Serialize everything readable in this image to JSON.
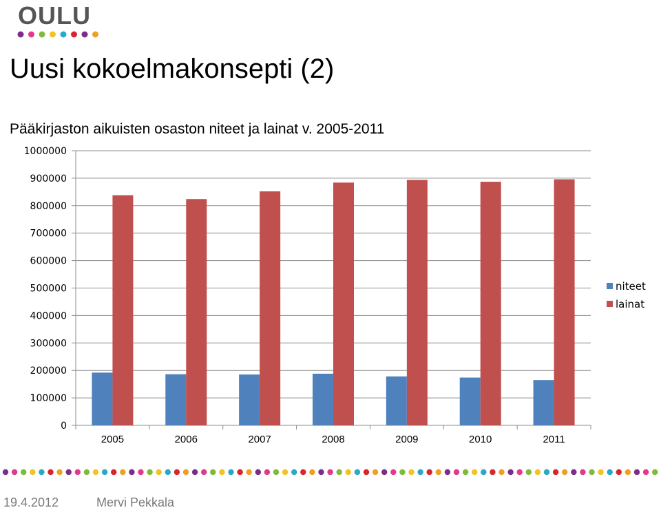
{
  "logo": {
    "text": "OULU",
    "dot_colors": [
      "#7b2d8e",
      "#e2398c",
      "#7fbb3b",
      "#f3c324",
      "#2aa8c8",
      "#d9262c",
      "#7b2d8e",
      "#f0a020"
    ]
  },
  "slide": {
    "title": "Uusi kokoelmakonsepti (2)",
    "subtitle": "Pääkirjaston aikuisten osaston niteet ja lainat v. 2005-2011"
  },
  "chart_data": {
    "type": "bar",
    "categories": [
      "2005",
      "2006",
      "2007",
      "2008",
      "2009",
      "2010",
      "2011"
    ],
    "series": [
      {
        "name": "niteet",
        "color": "#4f81bd",
        "values": [
          192000,
          186000,
          185000,
          188000,
          178000,
          174000,
          165000
        ]
      },
      {
        "name": "lainat",
        "color": "#c0504d",
        "values": [
          838000,
          824000,
          852000,
          884000,
          894000,
          887000,
          896000
        ]
      }
    ],
    "ylim": [
      0,
      1000000
    ],
    "yticks": [
      "0",
      "100000",
      "200000",
      "300000",
      "400000",
      "500000",
      "600000",
      "700000",
      "800000",
      "900000",
      "1000000"
    ],
    "grid": true,
    "legend": "right"
  },
  "decor": {
    "dot_colors": [
      "#7b2d8e",
      "#e2398c",
      "#7fbb3b",
      "#f3c324",
      "#2aa8c8",
      "#d9262c",
      "#f0a020"
    ]
  },
  "footer": {
    "date": "19.4.2012",
    "author": "Mervi Pekkala"
  }
}
